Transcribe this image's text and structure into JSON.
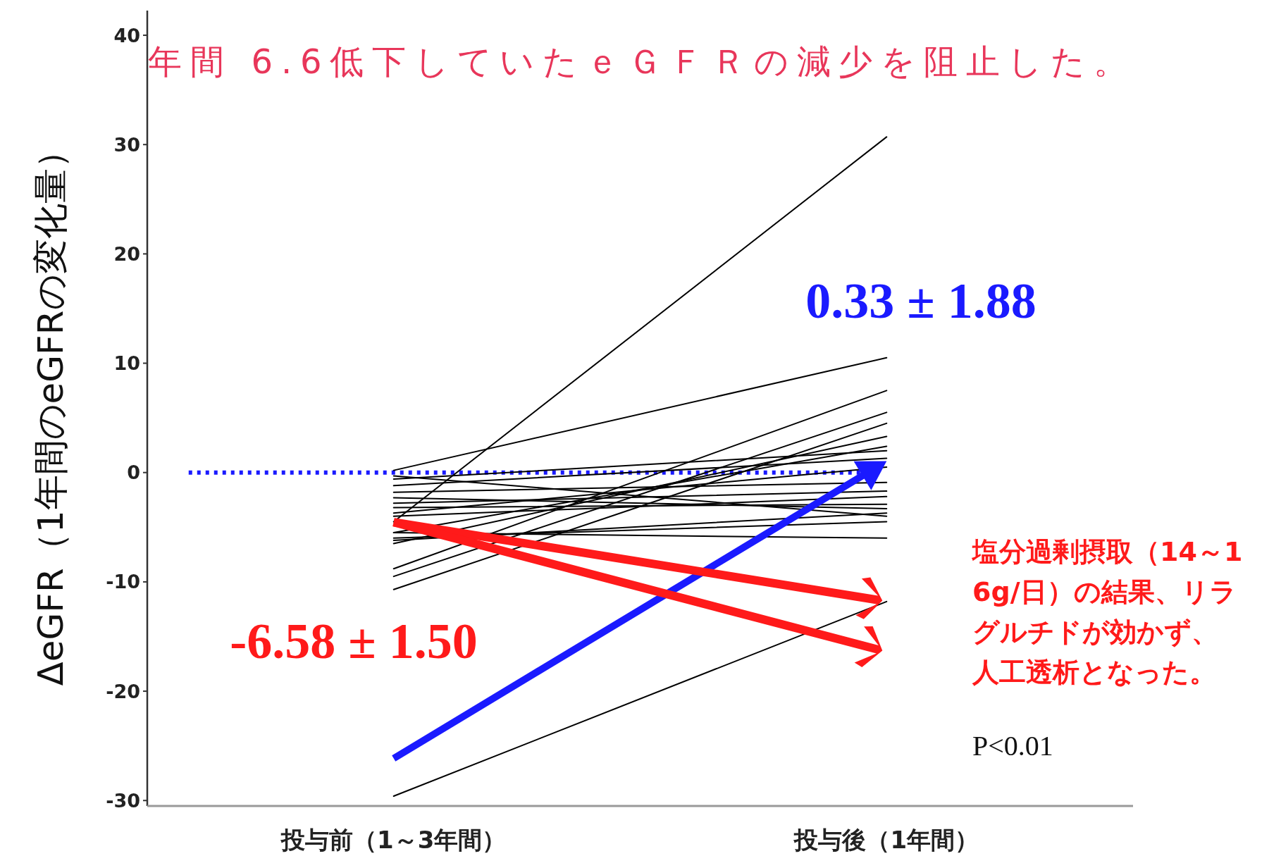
{
  "chart_data": {
    "type": "line",
    "title": "年間 6.6低下していたｅＧＦＲの減少を阻止した。",
    "ylabel": "ΔeGFR（1年間のeGFRの変化量）",
    "categories": [
      "投与前（1～3年間）",
      "投与後（1年間）"
    ],
    "ylim": [
      -30.5,
      42
    ],
    "yticks": [
      -30,
      -20,
      -10,
      0,
      10,
      20,
      30,
      40
    ],
    "series": [
      {
        "color": "#000000",
        "values": [
          -4.5,
          30.7
        ]
      },
      {
        "color": "#000000",
        "values": [
          0.2,
          10.5
        ]
      },
      {
        "color": "#000000",
        "values": [
          -8.8,
          7.5
        ]
      },
      {
        "color": "#000000",
        "values": [
          -9.5,
          5.5
        ]
      },
      {
        "color": "#000000",
        "values": [
          -10.7,
          4.5
        ]
      },
      {
        "color": "#000000",
        "values": [
          -6.5,
          3.3
        ]
      },
      {
        "color": "#000000",
        "values": [
          -5.5,
          2.4
        ]
      },
      {
        "color": "#000000",
        "values": [
          -0.6,
          2.0
        ]
      },
      {
        "color": "#000000",
        "values": [
          -1.2,
          1.3
        ]
      },
      {
        "color": "#000000",
        "values": [
          -3.7,
          0.5
        ]
      },
      {
        "color": "#000000",
        "values": [
          -1.8,
          -0.9
        ]
      },
      {
        "color": "#000000",
        "values": [
          -2.8,
          -1.7
        ]
      },
      {
        "color": "#000000",
        "values": [
          -4.0,
          -2.2
        ]
      },
      {
        "color": "#000000",
        "values": [
          -3.2,
          -2.9
        ]
      },
      {
        "color": "#000000",
        "values": [
          -2.3,
          -3.3
        ]
      },
      {
        "color": "#000000",
        "values": [
          -6.2,
          -3.7
        ]
      },
      {
        "color": "#000000",
        "values": [
          -0.3,
          -4.0
        ]
      },
      {
        "color": "#000000",
        "values": [
          -6.0,
          -4.5
        ]
      },
      {
        "color": "#000000",
        "values": [
          -5.5,
          -6.0
        ]
      },
      {
        "color": "#000000",
        "values": [
          -29.6,
          -11.8
        ]
      }
    ],
    "ref_lines": [
      {
        "axis": "y",
        "value": 0,
        "color": "#1a1aff",
        "line_style": "dotted"
      }
    ],
    "annotations": [
      "0.33 ± 1.88",
      "-6.58 ± 1.50",
      "塩分過剰摂取（14～16g/日）の結果、リラグルチドが効かず、人工透析となった。",
      "P<0.01"
    ]
  }
}
